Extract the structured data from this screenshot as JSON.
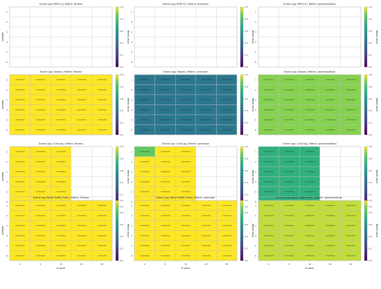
{
  "chart_data": {
    "type": "heatmap",
    "colormap": "viridis",
    "colorbar": {
      "label": "Metric Value",
      "range": [
        0.0,
        1.0
      ],
      "ticks": [
        "1.0",
        "0.8",
        "0.6",
        "0.4",
        "0.2",
        "0.0"
      ]
    },
    "x_tick_labels": [
      "2",
      "5",
      "10",
      "20",
      "50"
    ],
    "y_tick_labels": [
      "1",
      "2",
      "3",
      "4",
      "5",
      "6"
    ],
    "xlabel": "K value",
    "ylabel": "Lambda",
    "grid": true,
    "panels": [
      {
        "title": "Event Log: BPIC13 | Metric: fitness",
        "value": null,
        "values": [
          [
            null,
            null,
            null,
            null,
            null
          ],
          [
            null,
            null,
            null,
            null,
            null
          ],
          [
            null,
            null,
            null,
            null,
            null
          ],
          [
            null,
            null,
            null,
            null,
            null
          ],
          [
            null,
            null,
            null,
            null,
            null
          ],
          [
            null,
            null,
            null,
            null,
            null
          ]
        ]
      },
      {
        "title": "Event Log: BPIC13 | Metric: precision",
        "value": null,
        "values": [
          [
            null,
            null,
            null,
            null,
            null
          ],
          [
            null,
            null,
            null,
            null,
            null
          ],
          [
            null,
            null,
            null,
            null,
            null
          ],
          [
            null,
            null,
            null,
            null,
            null
          ],
          [
            null,
            null,
            null,
            null,
            null
          ],
          [
            null,
            null,
            null,
            null,
            null
          ]
        ]
      },
      {
        "title": "Event Log: BPIC13 | Metric: generalization",
        "value": null,
        "values": [
          [
            null,
            null,
            null,
            null,
            null
          ],
          [
            null,
            null,
            null,
            null,
            null
          ],
          [
            null,
            null,
            null,
            null,
            null
          ],
          [
            null,
            null,
            null,
            null,
            null
          ],
          [
            null,
            null,
            null,
            null,
            null
          ],
          [
            null,
            null,
            null,
            null,
            null
          ]
        ]
      },
      {
        "title": "Event Log: Sepsis | Metric: fitness",
        "value": 1.0,
        "values": [
          [
            1,
            1,
            1,
            1,
            1
          ],
          [
            1,
            1,
            1,
            1,
            1
          ],
          [
            1,
            1,
            1,
            1,
            1
          ],
          [
            1,
            1,
            1,
            1,
            1
          ],
          [
            1,
            1,
            1,
            1,
            1
          ],
          [
            1,
            1,
            1,
            1,
            1
          ]
        ]
      },
      {
        "title": "Event Log: Sepsis | Metric: precision",
        "value": 0.45,
        "values": [
          [
            0.45,
            0.45,
            0.45,
            0.45,
            0.45
          ],
          [
            0.45,
            0.45,
            0.45,
            0.45,
            0.45
          ],
          [
            0.45,
            0.45,
            0.45,
            0.45,
            0.45
          ],
          [
            0.45,
            0.45,
            0.45,
            0.45,
            0.45
          ],
          [
            0.45,
            0.45,
            0.45,
            0.45,
            0.45
          ],
          [
            0.45,
            0.45,
            0.45,
            0.45,
            0.45
          ]
        ]
      },
      {
        "title": "Event Log: Sepsis | Metric: generalization",
        "value": 0.9,
        "values": [
          [
            0.9,
            0.9,
            0.9,
            0.9,
            0.9
          ],
          [
            0.9,
            0.9,
            0.9,
            0.9,
            0.9
          ],
          [
            0.9,
            0.9,
            0.9,
            0.9,
            0.9
          ],
          [
            0.9,
            0.9,
            0.9,
            0.9,
            0.9
          ],
          [
            0.9,
            0.9,
            0.9,
            0.9,
            0.9
          ],
          [
            0.9,
            0.9,
            0.9,
            0.9,
            0.9
          ]
        ]
      },
      {
        "title": "Event Log: Cchd.og | Metric: fitness",
        "value": 1.0,
        "values": [
          [
            1,
            1,
            1,
            null,
            null
          ],
          [
            1,
            1,
            1,
            null,
            null
          ],
          [
            1,
            1,
            1,
            null,
            null
          ],
          [
            1,
            1,
            1,
            null,
            null
          ],
          [
            1,
            1,
            1,
            null,
            null
          ],
          [
            1,
            1,
            1,
            null,
            null
          ]
        ]
      },
      {
        "title": "Event Log: Cchd.og | Metric: precision",
        "value": 0.85,
        "values": [
          [
            0.85,
            1,
            1,
            null,
            null
          ],
          [
            1,
            1,
            1,
            null,
            null
          ],
          [
            1,
            1,
            1,
            null,
            null
          ],
          [
            1,
            1,
            1,
            null,
            null
          ],
          [
            1,
            1,
            1,
            null,
            null
          ],
          [
            1,
            1,
            1,
            null,
            null
          ]
        ]
      },
      {
        "title": "Event Log: Cchd.og | Metric: generalization",
        "value": 0.72,
        "values": [
          [
            0.72,
            0.72,
            0.72,
            null,
            null
          ],
          [
            0.72,
            0.72,
            0.72,
            null,
            null
          ],
          [
            0.72,
            0.72,
            0.72,
            null,
            null
          ],
          [
            0.72,
            0.72,
            0.72,
            null,
            null
          ],
          [
            0.72,
            0.72,
            0.72,
            null,
            null
          ],
          [
            0.72,
            0.72,
            0.72,
            null,
            null
          ]
        ]
      },
      {
        "title": "Event Log: Road Traffic Fines | Metric: fitness",
        "value": 1.0,
        "values": [
          [
            1,
            1,
            1,
            1,
            1
          ],
          [
            1,
            1,
            1,
            1,
            1
          ],
          [
            1,
            1,
            1,
            1,
            1
          ],
          [
            1,
            1,
            1,
            1,
            1
          ],
          [
            1,
            1,
            1,
            1,
            1
          ],
          [
            1,
            1,
            1,
            1,
            1
          ]
        ]
      },
      {
        "title": "Event Log: Road Traffic Fines | Metric: precision",
        "value": 1.0,
        "values": [
          [
            1,
            1,
            1,
            1,
            1
          ],
          [
            1,
            1,
            1,
            1,
            1
          ],
          [
            1,
            1,
            1,
            1,
            1
          ],
          [
            1,
            1,
            1,
            1,
            1
          ],
          [
            1,
            1,
            1,
            1,
            1
          ],
          [
            1,
            1,
            1,
            1,
            1
          ]
        ]
      },
      {
        "title": "Event Log: Road Traffic Fines | Metric: generalization",
        "value": 0.95,
        "values": [
          [
            0.95,
            0.95,
            0.95,
            0.95,
            0.95
          ],
          [
            0.95,
            0.95,
            0.95,
            0.95,
            0.95
          ],
          [
            0.95,
            0.95,
            0.95,
            0.95,
            0.95
          ],
          [
            0.95,
            0.95,
            0.95,
            0.95,
            0.95
          ],
          [
            0.95,
            0.95,
            0.95,
            0.95,
            0.95
          ],
          [
            0.95,
            0.95,
            0.95,
            0.95,
            0.95
          ]
        ]
      }
    ]
  }
}
